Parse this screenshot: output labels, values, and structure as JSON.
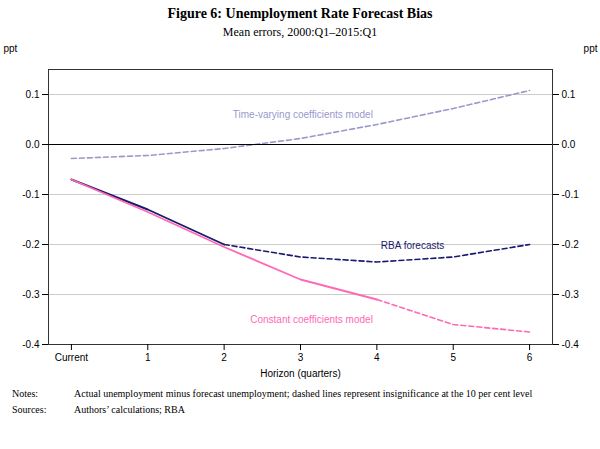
{
  "chart_data": {
    "type": "line",
    "title": "Figure 6: Unemployment Rate Forecast Bias",
    "subtitle": "Mean errors, 2000:Q1–2015:Q1",
    "xlabel": "Horizon (quarters)",
    "ylabel": "ppt",
    "y2label": "ppt",
    "notes_label": "Notes:",
    "notes": "Actual unemployment minus forecast unemployment; dashed lines represent insignificance at the 10 per cent level",
    "sources_label": "Sources:",
    "sources": "Authors’ calculations; RBA",
    "x": [
      0,
      1,
      2,
      3,
      4,
      5,
      6
    ],
    "xlim": [
      -0.3,
      6.3
    ],
    "xticks": [
      {
        "value": 0,
        "label": "Current"
      },
      1,
      2,
      3,
      4,
      5,
      6
    ],
    "ylim": [
      -0.4,
      0.15
    ],
    "yticks": [
      -0.4,
      -0.3,
      -0.2,
      -0.1,
      {
        "value": 0,
        "label": "0.0"
      },
      0.1
    ],
    "y2ticks": [
      -0.4,
      -0.3,
      -0.2,
      -0.1,
      {
        "value": 0,
        "label": "0.0"
      },
      0.1
    ],
    "grid": true,
    "series": [
      {
        "name": "Time-varying coefficients model",
        "color": "#9999cc",
        "line_style": "dashed",
        "values": [
          -0.028,
          -0.022,
          -0.008,
          0.012,
          0.04,
          0.072,
          0.108
        ]
      },
      {
        "name": "RBA forecasts",
        "color": "#1a1a6e",
        "line_style": "solid",
        "values": [
          -0.07,
          -0.13,
          -0.2,
          null,
          null,
          null,
          null
        ]
      },
      {
        "name": "RBA forecasts",
        "color": "#1a1a6e",
        "line_style": "dashed",
        "values": [
          null,
          null,
          -0.2,
          -0.225,
          -0.235,
          -0.225,
          -0.2
        ]
      },
      {
        "name": "Constant coefficients model",
        "color": "#ff69b4",
        "line_style": "solid",
        "values": [
          -0.07,
          -0.135,
          -0.205,
          -0.27,
          -0.31,
          null,
          null
        ]
      },
      {
        "name": "Constant coefficients model",
        "color": "#ff69b4",
        "line_style": "dashed",
        "values": [
          null,
          null,
          null,
          null,
          -0.31,
          -0.36,
          -0.375
        ]
      }
    ]
  }
}
